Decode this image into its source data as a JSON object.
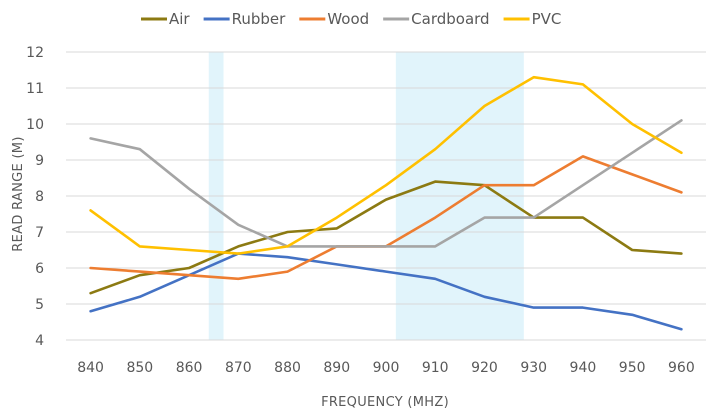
{
  "chart_data": {
    "type": "line",
    "title": "",
    "xlabel": "FREQUENCY (MHZ)",
    "ylabel": "READ RANGE (M)",
    "x": [
      840,
      850,
      860,
      870,
      880,
      890,
      900,
      910,
      920,
      930,
      940,
      950,
      960
    ],
    "xlim": [
      835,
      965
    ],
    "ylim": [
      4,
      12
    ],
    "yticks": [
      4,
      5,
      6,
      7,
      8,
      9,
      10,
      11,
      12
    ],
    "grid": "horizontal",
    "legend_position": "top",
    "shaded_bands": [
      {
        "x_start": 864,
        "x_end": 867,
        "color": "#e1f4fb"
      },
      {
        "x_start": 902,
        "x_end": 928,
        "color": "#e1f4fb"
      }
    ],
    "series": [
      {
        "name": "Air",
        "color": "#8c7a12",
        "values": [
          5.3,
          5.8,
          6.0,
          6.6,
          7.0,
          7.1,
          7.9,
          8.4,
          8.3,
          7.4,
          7.4,
          6.5,
          6.4
        ]
      },
      {
        "name": "Rubber",
        "color": "#4472c4",
        "values": [
          4.8,
          5.2,
          5.8,
          6.4,
          6.3,
          6.1,
          5.9,
          5.7,
          5.2,
          4.9,
          4.9,
          4.7,
          4.3
        ]
      },
      {
        "name": "Wood",
        "color": "#ed7d31",
        "values": [
          6.0,
          5.9,
          5.8,
          5.7,
          5.9,
          6.6,
          6.6,
          7.4,
          8.3,
          8.3,
          9.1,
          8.6,
          8.1
        ]
      },
      {
        "name": "Cardboard",
        "color": "#a5a5a5",
        "values": [
          9.6,
          9.3,
          8.2,
          7.2,
          6.6,
          6.6,
          6.6,
          6.6,
          7.4,
          7.4,
          8.3,
          9.2,
          10.1
        ]
      },
      {
        "name": "PVC",
        "color": "#ffc000",
        "values": [
          7.6,
          6.6,
          6.5,
          6.4,
          6.6,
          7.4,
          8.3,
          9.3,
          10.5,
          11.3,
          11.1,
          10.0,
          9.2
        ]
      }
    ]
  }
}
